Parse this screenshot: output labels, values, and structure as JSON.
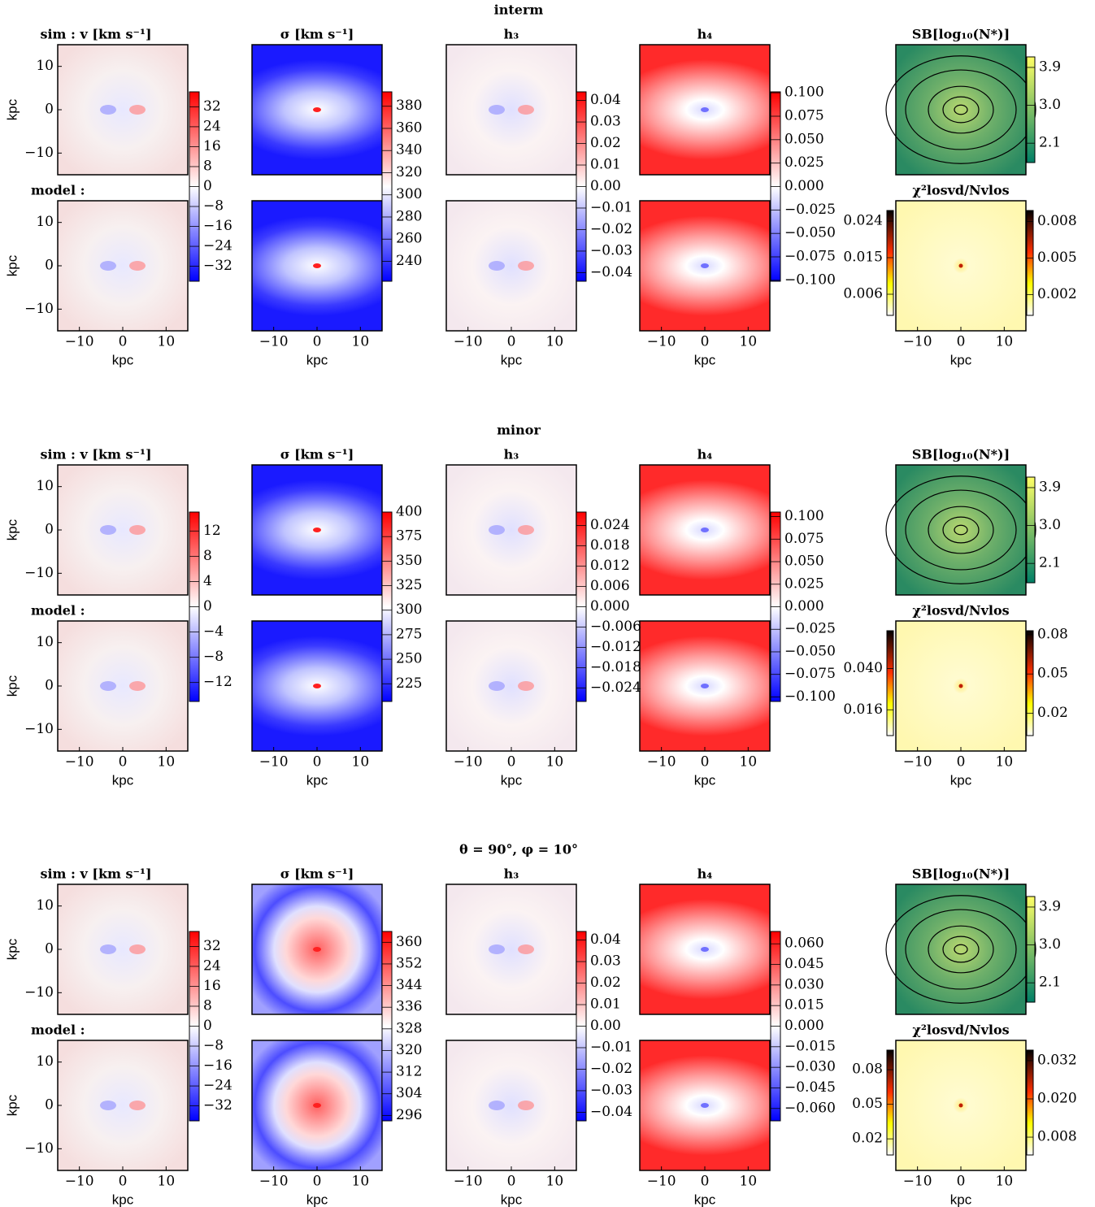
{
  "axes": {
    "xlim": [
      -15,
      15
    ],
    "ylim": [
      -15,
      15
    ],
    "ticks": [
      {
        "value": -10,
        "label": "−10"
      },
      0,
      10
    ],
    "xlabel": "kpc",
    "ylabel": "kpc"
  },
  "blocks": [
    {
      "title": "interm",
      "column_titles": [
        "sim : v [km s⁻¹]",
        "σ [km s⁻¹]",
        "h₃",
        "h₄",
        "SB[log₁₀(N*)]"
      ],
      "model_label": "model :",
      "chi2_title": "χ²losvd/Nvlos",
      "colorbars": [
        {
          "lim": [
            -38,
            38
          ],
          "ticks": [
            32,
            24,
            16,
            8,
            0,
            {
              "value": -8,
              "label": "−8"
            },
            {
              "value": -16,
              "label": "−16"
            },
            {
              "value": -24,
              "label": "−24"
            },
            {
              "value": -32,
              "label": "−32"
            }
          ]
        },
        {
          "lim": [
            222,
            393
          ],
          "ticks": [
            380,
            360,
            340,
            320,
            300,
            280,
            260,
            240
          ]
        },
        {
          "lim": [
            -0.044,
            0.044
          ],
          "ticks": [
            0.04,
            0.03,
            0.02,
            0.01,
            {
              "value": 0,
              "label": "0.00"
            },
            {
              "value": -0.01,
              "label": "−0.01"
            },
            {
              "value": -0.02,
              "label": "−0.02"
            },
            {
              "value": -0.03,
              "label": "−0.03"
            },
            {
              "value": -0.04,
              "label": "−0.04"
            }
          ]
        },
        {
          "lim": [
            -0.101,
            0.101
          ],
          "ticks": [
            {
              "value": 0.1,
              "label": "0.100"
            },
            0.075,
            {
              "value": 0.05,
              "label": "0.050"
            },
            0.025,
            {
              "value": 0,
              "label": "0.000"
            },
            {
              "value": -0.025,
              "label": "−0.025"
            },
            {
              "value": -0.05,
              "label": "−0.050"
            },
            {
              "value": -0.075,
              "label": "−0.075"
            },
            {
              "value": -0.1,
              "label": "−0.100"
            }
          ]
        },
        {
          "lim": [
            1.64,
            4.15
          ],
          "ticks": [
            3.9,
            {
              "value": 3,
              "label": "3.0"
            },
            2.1
          ]
        },
        {
          "lim": [
            0.0008,
            0.0266
          ],
          "ticks": [
            0.024,
            0.015,
            0.006
          ]
        },
        {
          "lim": [
            0.0003,
            0.0089
          ],
          "ticks": [
            0.008,
            0.005,
            0.002
          ]
        }
      ]
    },
    {
      "title": "minor",
      "column_titles": [
        "sim : v [km s⁻¹]",
        "σ [km s⁻¹]",
        "h₃",
        "h₄",
        "SB[log₁₀(N*)]"
      ],
      "model_label": "model :",
      "chi2_title": "χ²losvd/Nvlos",
      "colorbars": [
        {
          "lim": [
            -15,
            15
          ],
          "ticks": [
            12,
            8,
            4,
            0,
            {
              "value": -4,
              "label": "−4"
            },
            {
              "value": -8,
              "label": "−8"
            },
            {
              "value": -12,
              "label": "−12"
            }
          ]
        },
        {
          "lim": [
            207,
            400
          ],
          "ticks": [
            400,
            375,
            350,
            325,
            300,
            275,
            250,
            225
          ]
        },
        {
          "lim": [
            -0.028,
            0.028
          ],
          "ticks": [
            0.024,
            0.018,
            0.012,
            0.006,
            {
              "value": 0,
              "label": "0.000"
            },
            {
              "value": -0.006,
              "label": "−0.006"
            },
            {
              "value": -0.012,
              "label": "−0.012"
            },
            {
              "value": -0.018,
              "label": "−0.018"
            },
            {
              "value": -0.024,
              "label": "−0.024"
            }
          ]
        },
        {
          "lim": [
            -0.105,
            0.105
          ],
          "ticks": [
            {
              "value": 0.1,
              "label": "0.100"
            },
            0.075,
            {
              "value": 0.05,
              "label": "0.050"
            },
            0.025,
            {
              "value": 0,
              "label": "0.000"
            },
            {
              "value": -0.025,
              "label": "−0.025"
            },
            {
              "value": -0.05,
              "label": "−0.050"
            },
            {
              "value": -0.075,
              "label": "−0.075"
            },
            {
              "value": -0.1,
              "label": "−0.100"
            }
          ]
        },
        {
          "lim": [
            1.64,
            4.15
          ],
          "ticks": [
            3.9,
            {
              "value": 3,
              "label": "3.0"
            },
            2.1
          ]
        },
        {
          "lim": [
            0.001,
            0.062
          ],
          "ticks": [
            {
              "value": 0.04,
              "label": "0.040"
            },
            0.016
          ]
        },
        {
          "lim": [
            0.003,
            0.083
          ],
          "ticks": [
            0.08,
            0.05,
            0.02
          ]
        }
      ]
    },
    {
      "title": "θ = 90°, φ = 10°",
      "column_titles": [
        "sim : v [km s⁻¹]",
        "σ [km s⁻¹]",
        "h₃",
        "h₄",
        "SB[log₁₀(N*)]"
      ],
      "model_label": "model :",
      "chi2_title": "χ²losvd/Nvlos",
      "colorbars": [
        {
          "lim": [
            -38,
            38
          ],
          "ticks": [
            32,
            24,
            16,
            8,
            0,
            {
              "value": -8,
              "label": "−8"
            },
            {
              "value": -16,
              "label": "−16"
            },
            {
              "value": -24,
              "label": "−24"
            },
            {
              "value": -32,
              "label": "−32"
            }
          ]
        },
        {
          "lim": [
            294,
            364
          ],
          "ticks": [
            360,
            352,
            344,
            336,
            328,
            320,
            312,
            304,
            296
          ]
        },
        {
          "lim": [
            -0.044,
            0.044
          ],
          "ticks": [
            0.04,
            0.03,
            0.02,
            0.01,
            {
              "value": 0,
              "label": "0.00"
            },
            {
              "value": -0.01,
              "label": "−0.01"
            },
            {
              "value": -0.02,
              "label": "−0.02"
            },
            {
              "value": -0.03,
              "label": "−0.03"
            },
            {
              "value": -0.04,
              "label": "−0.04"
            }
          ]
        },
        {
          "lim": [
            -0.069,
            0.069
          ],
          "ticks": [
            {
              "value": 0.06,
              "label": "0.060"
            },
            0.045,
            {
              "value": 0.03,
              "label": "0.030"
            },
            0.015,
            {
              "value": 0,
              "label": "0.000"
            },
            {
              "value": -0.015,
              "label": "−0.015"
            },
            {
              "value": -0.03,
              "label": "−0.030"
            },
            {
              "value": -0.045,
              "label": "−0.045"
            },
            {
              "value": -0.06,
              "label": "−0.060"
            }
          ]
        },
        {
          "lim": [
            1.64,
            4.15
          ],
          "ticks": [
            3.9,
            {
              "value": 3,
              "label": "3.0"
            },
            2.1
          ]
        },
        {
          "lim": [
            0.006,
            0.097
          ],
          "ticks": [
            0.08,
            0.05,
            0.02
          ]
        },
        {
          "lim": [
            0.0024,
            0.0353
          ],
          "ticks": [
            0.032,
            {
              "value": 0.02,
              "label": "0.020"
            },
            0.008
          ]
        }
      ]
    }
  ]
}
